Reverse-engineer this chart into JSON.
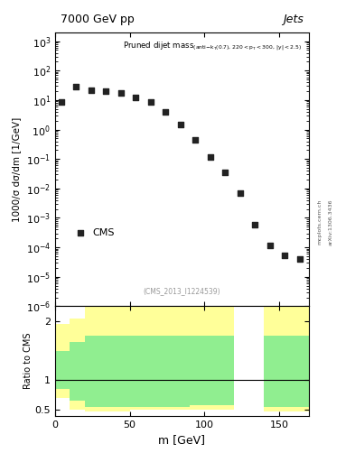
{
  "title_left": "7000 GeV pp",
  "title_right": "Jets",
  "cms_label": "CMS",
  "watermark": "(CMS_2013_I1224539)",
  "arxiv": "arXiv:1306.3436",
  "mcplots": "mcplots.cern.ch",
  "ylabel_main": "1000/σ dσ/dm [1/GeV]",
  "ylabel_ratio": "Ratio to CMS",
  "xlabel": "m [GeV]",
  "cms_x": [
    4,
    14,
    24,
    34,
    44,
    54,
    64,
    74,
    84,
    94,
    104,
    114,
    124,
    134,
    144,
    154,
    164
  ],
  "cms_y": [
    8.5,
    28,
    22,
    20,
    18,
    12,
    8.5,
    4.0,
    1.5,
    0.45,
    0.12,
    0.035,
    0.007,
    0.0006,
    0.00012,
    5.5e-05,
    4e-05
  ],
  "ylim_main": [
    1e-06,
    2000.0
  ],
  "xlim": [
    0,
    170
  ],
  "ratio_ylim": [
    0.4,
    2.25
  ],
  "ratio_yticks": [
    0.5,
    1,
    2
  ],
  "bands": [
    [
      0,
      10,
      1.95,
      0.7,
      1.5,
      0.85
    ],
    [
      10,
      20,
      2.05,
      0.5,
      1.65,
      0.65
    ],
    [
      20,
      30,
      2.3,
      0.47,
      1.75,
      0.55
    ],
    [
      30,
      40,
      2.3,
      0.47,
      1.75,
      0.55
    ],
    [
      40,
      50,
      2.3,
      0.47,
      1.75,
      0.55
    ],
    [
      50,
      60,
      2.3,
      0.5,
      1.75,
      0.55
    ],
    [
      60,
      70,
      2.3,
      0.5,
      1.75,
      0.55
    ],
    [
      70,
      80,
      2.3,
      0.5,
      1.75,
      0.55
    ],
    [
      80,
      90,
      2.3,
      0.5,
      1.75,
      0.55
    ],
    [
      90,
      100,
      2.3,
      0.5,
      1.75,
      0.58
    ],
    [
      100,
      110,
      2.3,
      0.5,
      1.75,
      0.58
    ],
    [
      110,
      120,
      2.3,
      0.5,
      1.75,
      0.58
    ],
    [
      120,
      130,
      0.0,
      0.0,
      0.0,
      0.0
    ],
    [
      130,
      140,
      0.0,
      0.0,
      0.0,
      0.0
    ],
    [
      140,
      150,
      2.3,
      0.47,
      1.75,
      0.55
    ],
    [
      150,
      160,
      2.3,
      0.47,
      1.75,
      0.55
    ],
    [
      160,
      170,
      2.3,
      0.47,
      1.75,
      0.55
    ]
  ],
  "marker_color": "#222222",
  "green_color": "#90ee90",
  "yellow_color": "#ffff99",
  "figure_bg": "#ffffff"
}
